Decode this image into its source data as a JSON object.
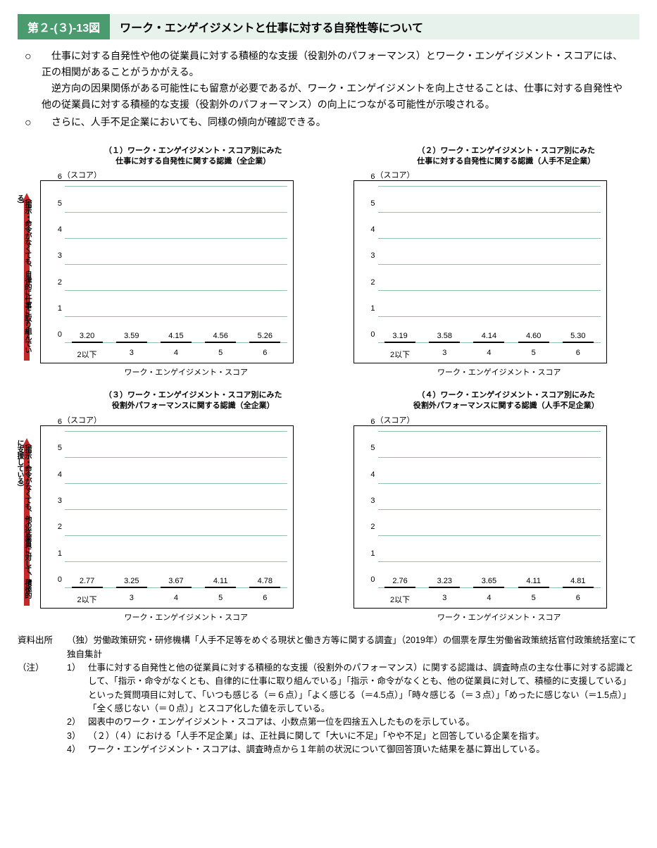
{
  "header": {
    "number": "第２-(３)-13図",
    "title": "ワーク・エンゲイジメントと仕事に対する自発性等について"
  },
  "body": {
    "para1": "仕事に対する自発性や他の従業員に対する積極的な支援（役割外のパフォーマンス）とワーク・エンゲイジメント・スコアには、正の相関があることがうかがえる。",
    "para2": "逆方向の因果関係がある可能性にも留意が必要であるが、ワーク・エンゲイジメントを向上させることは、仕事に対する自発性や他の従業員に対する積極的な支援（役割外のパフォーマンス）の向上につながる可能性が示唆される。",
    "para3": "さらに、人手不足企業においても、同様の傾向が確認できる。"
  },
  "arrow_labels": {
    "top": "（指示・命令がなくても、自律的に仕事に取り組んでいる）",
    "bottom": "（指示・命令がなくても、他の従業員に対して、積極的に支援している）"
  },
  "common": {
    "y_unit": "（スコア）",
    "y_max": 6,
    "y_ticks": [
      0,
      1,
      2,
      3,
      4,
      5,
      6
    ],
    "x_labels": [
      "2以下",
      "3",
      "4",
      "5",
      "6"
    ],
    "x_title": "ワーク・エンゲイジメント・スコア",
    "grid_color": "#4a9b6e",
    "bar_border": "#000000",
    "plot_border": "#000000",
    "arrow_color": "#c62828"
  },
  "charts": [
    {
      "id": "c1",
      "title": "（１）ワーク・エンゲイジメント・スコア別にみた\n仕事に対する自発性に関する認識（全企業）",
      "pattern": "p-blue",
      "values": [
        3.2,
        3.59,
        4.15,
        4.56,
        5.26
      ],
      "labels": [
        "3.20",
        "3.59",
        "4.15",
        "4.56",
        "5.26"
      ],
      "show_arrow": true,
      "arrow_text_key": "top"
    },
    {
      "id": "c2",
      "title": "（２）ワーク・エンゲイジメント・スコア別にみた\n仕事に対する自発性に関する認識（人手不足企業）",
      "pattern": "p-purple",
      "values": [
        3.19,
        3.58,
        4.14,
        4.6,
        5.3
      ],
      "labels": [
        "3.19",
        "3.58",
        "4.14",
        "4.60",
        "5.30"
      ],
      "show_arrow": false
    },
    {
      "id": "c3",
      "title": "（３）ワーク・エンゲイジメント・スコア別にみた\n役割外パフォーマンスに関する認識（全企業）",
      "pattern": "p-green",
      "values": [
        2.77,
        3.25,
        3.67,
        4.11,
        4.78
      ],
      "labels": [
        "2.77",
        "3.25",
        "3.67",
        "4.11",
        "4.78"
      ],
      "show_arrow": true,
      "arrow_text_key": "bottom"
    },
    {
      "id": "c4",
      "title": "（４）ワーク・エンゲイジメント・スコア別にみた\n役割外パフォーマンスに関する認識（人手不足企業）",
      "pattern": "p-orange",
      "values": [
        2.76,
        3.23,
        3.65,
        4.11,
        4.81
      ],
      "labels": [
        "2.76",
        "3.23",
        "3.65",
        "4.11",
        "4.81"
      ],
      "show_arrow": false
    }
  ],
  "footnotes": {
    "source_label": "資料出所",
    "source_text": "（独）労働政策研究・研修機構「人手不足等をめぐる現状と働き方等に関する調査」（2019年）の個票を厚生労働省政策統括官付政策統括室にて独自集計",
    "note_label": "（注）",
    "notes": [
      "仕事に対する自発性と他の従業員に対する積極的な支援（役割外のパフォーマンス）に関する認識は、調査時点の主な仕事に対する認識として、「指示・命令がなくとも、自律的に仕事に取り組んでいる」「指示・命令がなくとも、他の従業員に対して、積極的に支援している」といった質問項目に対して、「いつも感じる（＝６点）」「よく感じる（＝4.5点）」「時々感じる（＝３点）」「めったに感じない（＝1.5点）」「全く感じない（＝０点）」とスコア化した値を示している。",
      "図表中のワーク・エンゲイジメント・スコアは、小数点第一位を四捨五入したものを示している。",
      "（２）（４）における「人手不足企業」は、正社員に関して「大いに不足」「やや不足」と回答している企業を指す。",
      "ワーク・エンゲイジメント・スコアは、調査時点から１年前の状況について御回答頂いた結果を基に算出している。"
    ]
  }
}
